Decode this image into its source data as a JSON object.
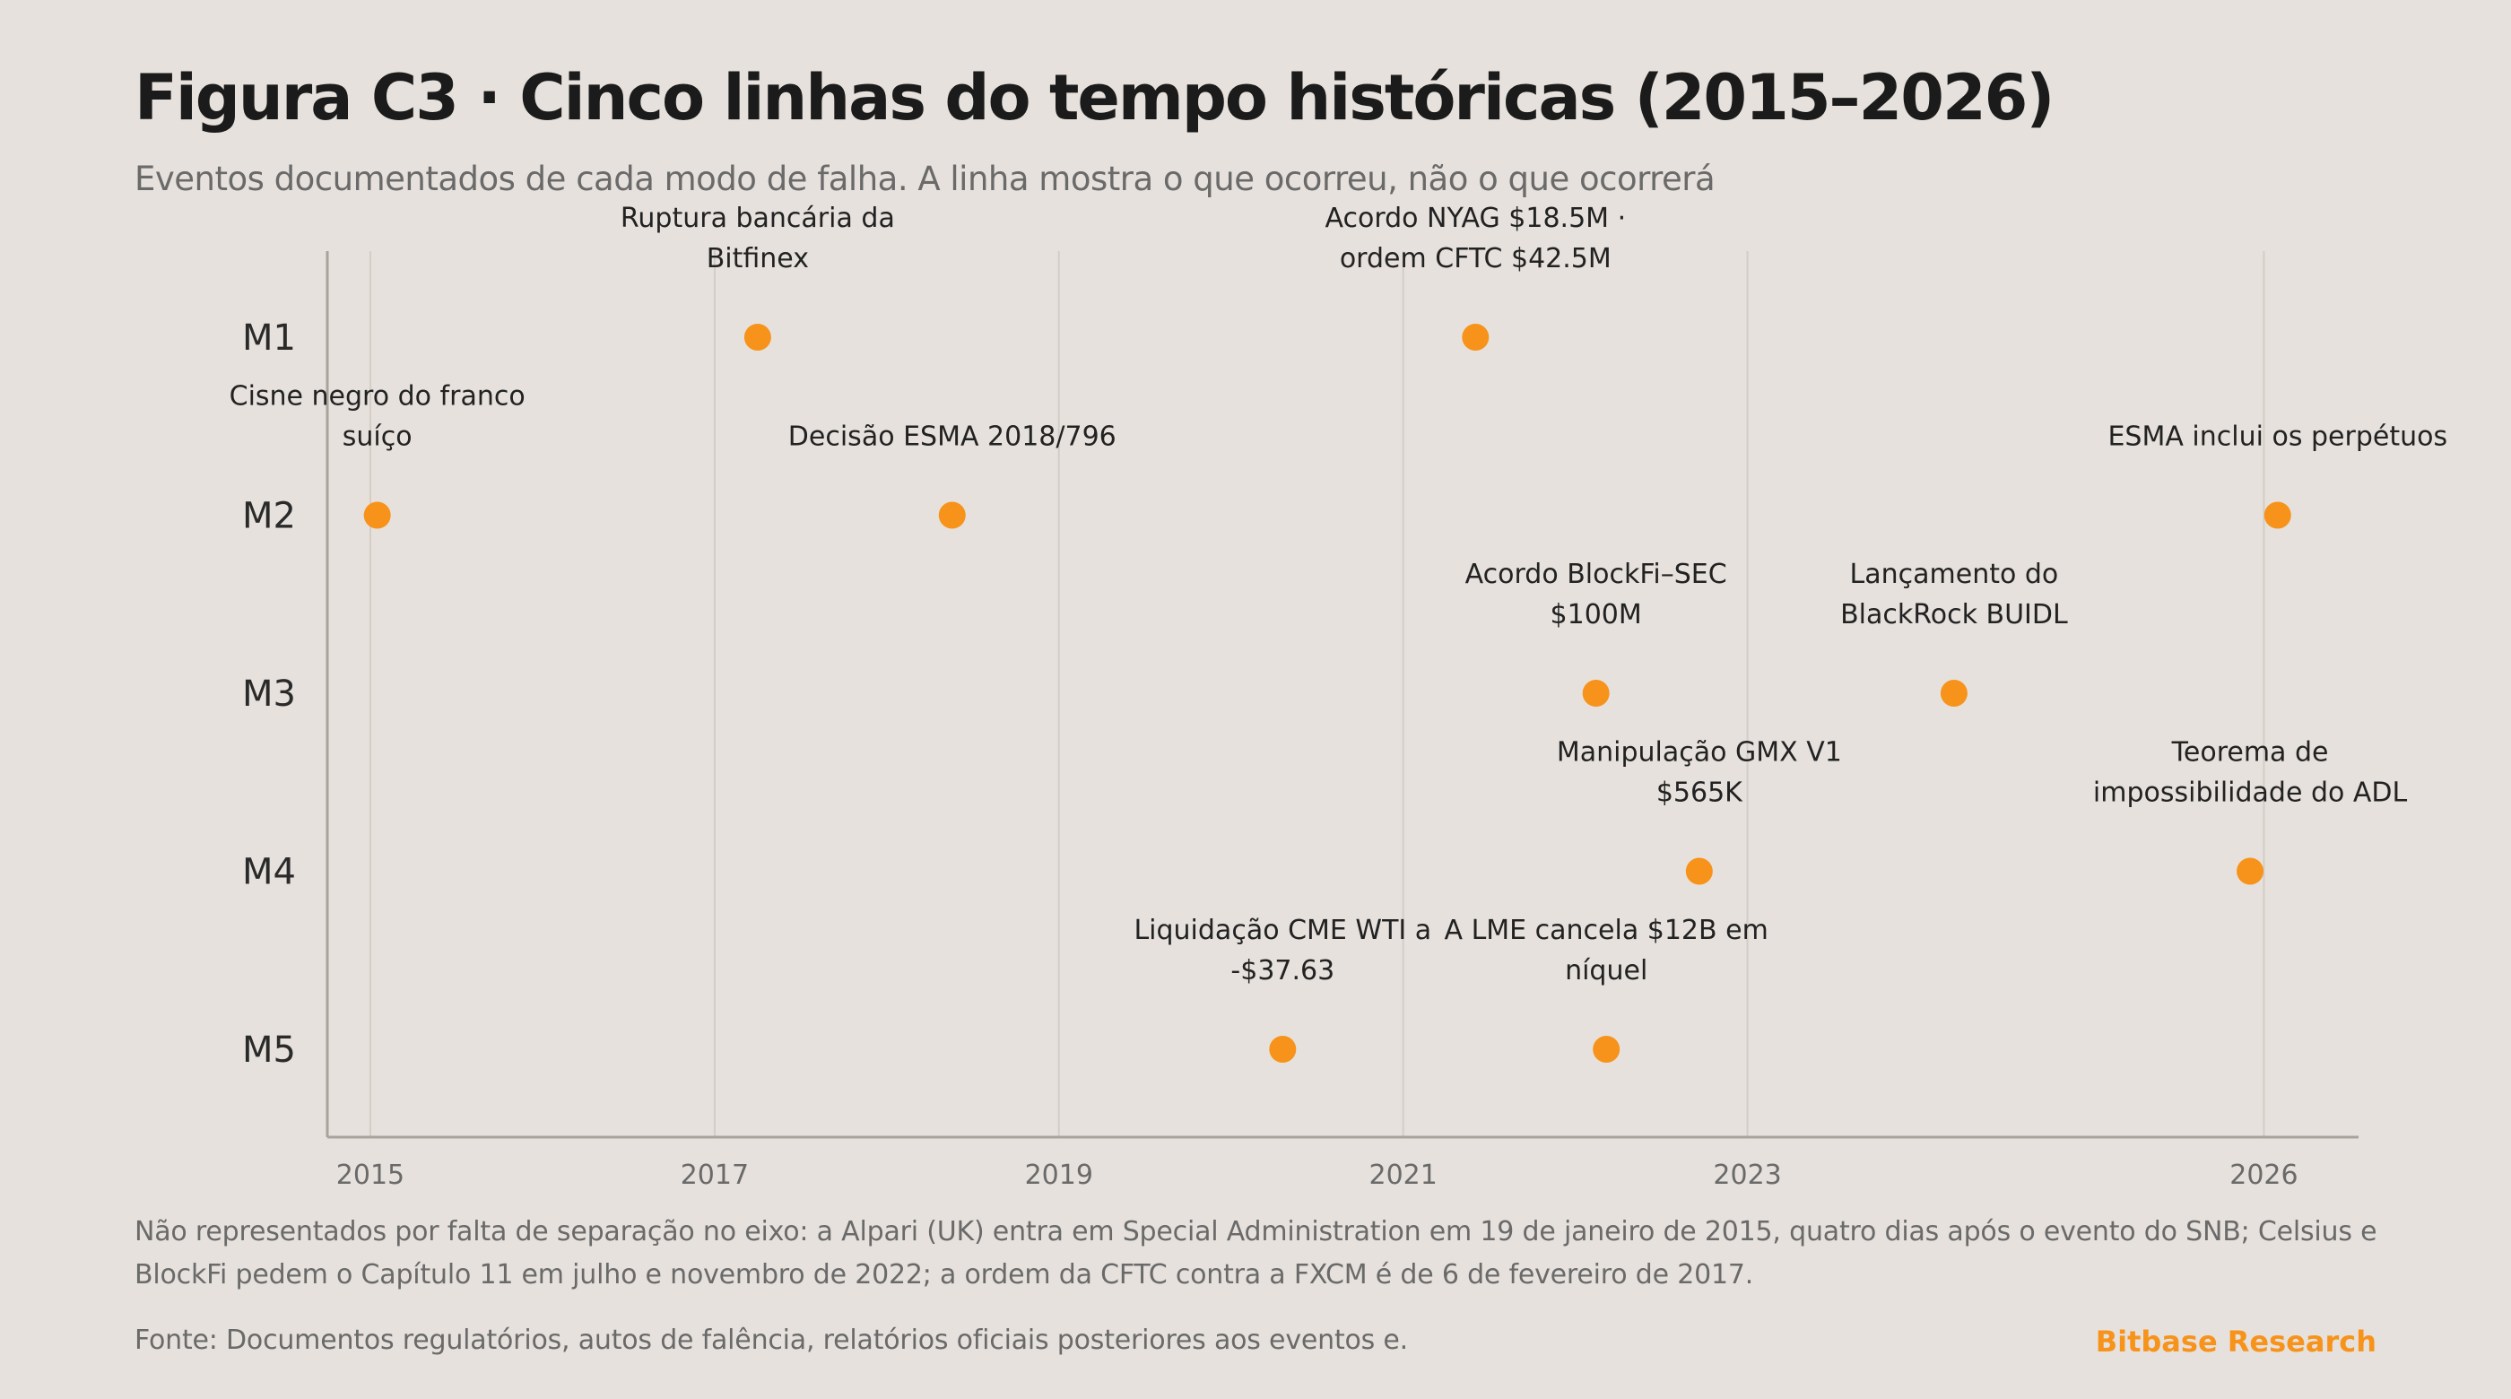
{
  "header": {
    "title": "Figura C3 · Cinco linhas do tempo históricas (2015–2026)",
    "subtitle": "Eventos documentados de cada modo de falha. A linha mostra o que ocorreu, não o que ocorrerá"
  },
  "chart_data": {
    "type": "scatter",
    "x_ticks": [
      "2015",
      "2017",
      "2019",
      "2021",
      "2023",
      "2026"
    ],
    "x_tick_values": [
      2015,
      2017,
      2019,
      2021,
      2023,
      2026
    ],
    "xlim": [
      2014.75,
      2026.55
    ],
    "categories": [
      "M1",
      "M2",
      "M3",
      "M4",
      "M5"
    ],
    "grid": "vertical",
    "marker_color": "#f7931a",
    "events": [
      {
        "row": "M1",
        "x": 2017.25,
        "label": [
          "Ruptura bancária da",
          "Bitfinex"
        ]
      },
      {
        "row": "M1",
        "x": 2021.42,
        "label": [
          "Acordo NYAG $18.5M ·",
          "ordem CFTC $42.5M"
        ]
      },
      {
        "row": "M2",
        "x": 2015.04,
        "label": [
          "Cisne negro do franco",
          "suíço"
        ]
      },
      {
        "row": "M2",
        "x": 2018.38,
        "label": [
          "Decisão ESMA 2018/796"
        ]
      },
      {
        "row": "M2",
        "x": 2026.08,
        "label": [
          "ESMA inclui os perpétuos"
        ]
      },
      {
        "row": "M3",
        "x": 2022.12,
        "label": [
          "Acordo BlockFi–SEC",
          "$100M"
        ]
      },
      {
        "row": "M3",
        "x": 2024.2,
        "label": [
          "Lançamento do",
          "BlackRock BUIDL"
        ]
      },
      {
        "row": "M4",
        "x": 2022.72,
        "label": [
          "Manipulação GMX V1",
          "$565K"
        ]
      },
      {
        "row": "M4",
        "x": 2025.92,
        "label": [
          "Teorema de",
          "impossibilidade do ADL"
        ]
      },
      {
        "row": "M5",
        "x": 2020.3,
        "label": [
          "Liquidação CME WTI a",
          "-$37.63"
        ]
      },
      {
        "row": "M5",
        "x": 2022.18,
        "label": [
          "A LME cancela $12B em",
          "níquel"
        ]
      }
    ]
  },
  "footer": {
    "footnote": "Não representados por falta de separação no eixo: a Alpari (UK) entra em Special Administration em 19 de janeiro de 2015, quatro dias após o evento do SNB; Celsius e BlockFi pedem o Capítulo 11 em julho e novembro de 2022; a ordem da CFTC contra a FXCM é de 6 de fevereiro de 2017.",
    "source": "Fonte: Documentos regulatórios, autos de falência, relatórios oficiais posteriores aos eventos e.",
    "brand": "Bitbase Research"
  }
}
